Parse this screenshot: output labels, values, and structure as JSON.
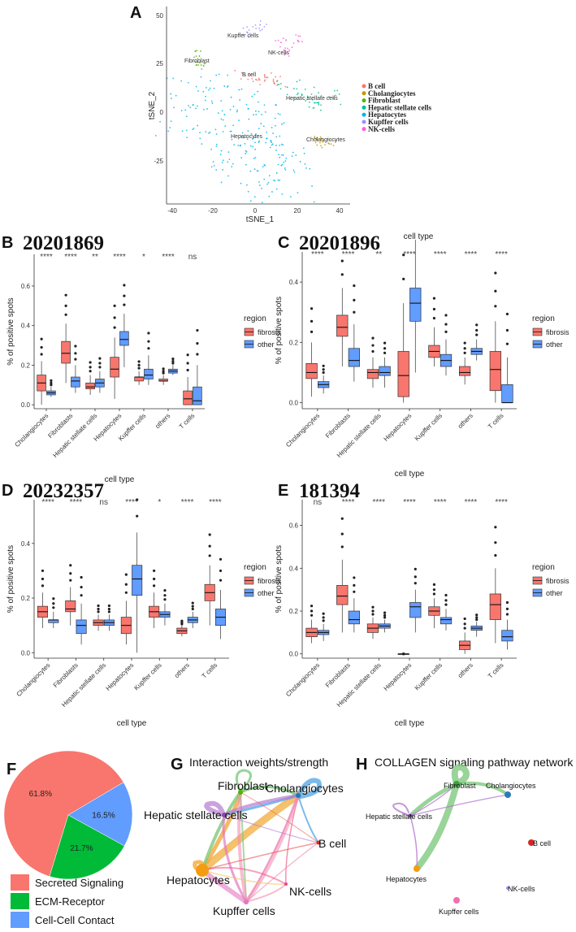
{
  "panel_a": {
    "letter": "A",
    "xlabel": "tSNE_1",
    "ylabel": "tSNE_2",
    "x_ticks": [
      "-40",
      "-20",
      "0",
      "20",
      "40"
    ],
    "y_ticks": [
      "50",
      "25",
      "0",
      "-25"
    ],
    "cluster_labels": [
      "Kupffer cells",
      "NK-cells",
      "Fibroblast",
      "B cell",
      "Hepatic stellate cells",
      "Hepatocytes",
      "Cholangiocytes"
    ],
    "legend": [
      "B cell",
      "Cholangiocytes",
      "Fibroblast",
      "Hepatic stellate cells",
      "Hepatocytes",
      "Kupffer cells",
      "NK-cells"
    ],
    "legend_colors": [
      "#f8766d",
      "#c49a00",
      "#53b400",
      "#00c094",
      "#00b6eb",
      "#a58aff",
      "#fb61d7"
    ]
  },
  "box_panels": [
    {
      "letter": "B",
      "sample_id": "20201869",
      "ylabel": "% of positive spots",
      "xlabel": "cell type",
      "y_ticks": [
        "0.0",
        "0.2",
        "0.4",
        "0.6"
      ],
      "significance": [
        "****",
        "****",
        "**",
        "****",
        "*",
        "****",
        "ns"
      ],
      "legend_title": "region",
      "legend_items": [
        "fibrosis",
        "other"
      ]
    },
    {
      "letter": "C",
      "sample_id": "20201896",
      "ylabel": "% of positive spots",
      "xlabel": "cell type",
      "top_label": "cell type",
      "y_ticks": [
        "0.0",
        "0.2",
        "0.4"
      ],
      "significance": [
        "****",
        "****",
        "**",
        "****",
        "****",
        "****",
        "****"
      ],
      "legend_title": "region",
      "legend_items": [
        "fibrosis",
        "other"
      ]
    },
    {
      "letter": "D",
      "sample_id": "20232357",
      "ylabel": "% of positive spots",
      "xlabel": "cell type",
      "y_ticks": [
        "0.0",
        "0.2",
        "0.4"
      ],
      "significance": [
        "****",
        "****",
        "ns",
        "****",
        "*",
        "****",
        "****"
      ],
      "legend_title": "region",
      "legend_items": [
        "fibrosis",
        "other"
      ]
    },
    {
      "letter": "E",
      "sample_id": "181394",
      "ylabel": "% of positive spots",
      "xlabel": "cell type",
      "y_ticks": [
        "0.0",
        "0.2",
        "0.4",
        "0.6"
      ],
      "significance": [
        "ns",
        "****",
        "****",
        "****",
        "****",
        "****",
        "****"
      ],
      "legend_title": "region",
      "legend_items": [
        "fibrosis",
        "other"
      ]
    }
  ],
  "panel_f": {
    "letter": "F",
    "legend": [
      "Secreted Signaling",
      "ECM-Receptor",
      "Cell-Cell Contact"
    ]
  },
  "panel_g": {
    "letter": "G",
    "title": "Interaction weights/strength",
    "nodes": [
      "Fibroblast",
      "Cholangiocytes",
      "Hepatic stellate cells",
      "B cell",
      "Hepatocytes",
      "NK-cells",
      "Kupffer cells"
    ]
  },
  "panel_h": {
    "letter": "H",
    "title": "COLLAGEN signaling pathway network",
    "nodes": [
      "Fibroblast",
      "Cholangiocytes",
      "Hepatic stellate cells",
      "B cell",
      "Hepatocytes",
      "NK-cells",
      "Kupffer cells"
    ]
  },
  "chart_data": [
    {
      "type": "scatter",
      "title": "",
      "xlabel": "tSNE_1",
      "ylabel": "tSNE_2",
      "xlim": [
        -45,
        47
      ],
      "ylim": [
        -52,
        56
      ],
      "series": [
        {
          "name": "B cell",
          "x": [
            -5,
            0,
            5,
            10
          ],
          "y": [
            20,
            18,
            19,
            17
          ]
        },
        {
          "name": "Cholangiocytes",
          "x": [
            28,
            32,
            35
          ],
          "y": [
            -12,
            -14,
            -15
          ]
        },
        {
          "name": "Fibroblast",
          "x": [
            -29,
            -27,
            -25
          ],
          "y": [
            27,
            30,
            25
          ]
        },
        {
          "name": "Hepatic stellate cells",
          "x": [
            15,
            22,
            28,
            35
          ],
          "y": [
            14,
            10,
            6,
            9
          ]
        },
        {
          "name": "Hepatocytes",
          "x": [
            -30,
            -15,
            0,
            10,
            -5
          ],
          "y": [
            5,
            0,
            -10,
            -30,
            -20
          ]
        },
        {
          "name": "Kupffer cells",
          "x": [
            -4,
            2
          ],
          "y": [
            42,
            46
          ]
        },
        {
          "name": "NK-cells",
          "x": [
            12,
            16,
            20
          ],
          "y": [
            37,
            33,
            38
          ]
        }
      ]
    },
    {
      "type": "box",
      "title": "20201869",
      "categories": [
        "Cholangiocytes",
        "Fibroblasts",
        "Hepatic stellate cells",
        "Hepatocytes",
        "Kupffer cells",
        "others",
        "T cells"
      ],
      "ylabel": "% of positive spots",
      "xlabel": "cell type",
      "ylim": [
        -0.02,
        0.76
      ],
      "series": [
        {
          "name": "fibrosis",
          "boxes": [
            [
              0.0,
              0.07,
              0.11,
              0.15,
              0.22
            ],
            [
              0.11,
              0.21,
              0.26,
              0.32,
              0.41
            ],
            [
              0.05,
              0.08,
              0.09,
              0.11,
              0.15
            ],
            [
              0.03,
              0.14,
              0.18,
              0.24,
              0.34
            ],
            [
              0.1,
              0.12,
              0.14,
              0.14,
              0.17
            ],
            [
              0.1,
              0.12,
              0.12,
              0.13,
              0.15
            ],
            [
              0.0,
              0.0,
              0.03,
              0.07,
              0.14
            ]
          ]
        },
        {
          "name": "other",
          "boxes": [
            [
              0.04,
              0.05,
              0.06,
              0.07,
              0.09
            ],
            [
              0.06,
              0.09,
              0.12,
              0.14,
              0.2
            ],
            [
              0.06,
              0.09,
              0.11,
              0.13,
              0.17
            ],
            [
              0.19,
              0.3,
              0.33,
              0.37,
              0.46
            ],
            [
              0.1,
              0.13,
              0.15,
              0.18,
              0.25
            ],
            [
              0.15,
              0.16,
              0.17,
              0.18,
              0.2
            ],
            [
              0.0,
              0.0,
              0.02,
              0.09,
              0.2
            ]
          ]
        }
      ]
    },
    {
      "type": "box",
      "title": "20201896",
      "categories": [
        "Cholangiocytes",
        "Fibroblasts",
        "Hepatic stellate cells",
        "Hepatocytes",
        "Kupffer cells",
        "others",
        "T cells"
      ],
      "ylabel": "% of positive spots",
      "xlabel": "cell type",
      "ylim": [
        -0.02,
        0.5
      ],
      "series": [
        {
          "name": "fibrosis",
          "boxes": [
            [
              0.02,
              0.08,
              0.1,
              0.13,
              0.2
            ],
            [
              0.12,
              0.22,
              0.25,
              0.29,
              0.38
            ],
            [
              0.05,
              0.08,
              0.1,
              0.11,
              0.15
            ],
            [
              0.0,
              0.02,
              0.09,
              0.17,
              0.33
            ],
            [
              0.12,
              0.15,
              0.17,
              0.19,
              0.25
            ],
            [
              0.06,
              0.09,
              0.1,
              0.12,
              0.15
            ],
            [
              0.0,
              0.04,
              0.11,
              0.17,
              0.27
            ]
          ]
        },
        {
          "name": "other",
          "boxes": [
            [
              0.03,
              0.05,
              0.06,
              0.07,
              0.09
            ],
            [
              0.07,
              0.12,
              0.14,
              0.18,
              0.26
            ],
            [
              0.05,
              0.09,
              0.1,
              0.12,
              0.15
            ],
            [
              0.1,
              0.27,
              0.33,
              0.38,
              0.54
            ],
            [
              0.09,
              0.12,
              0.14,
              0.16,
              0.21
            ],
            [
              0.14,
              0.16,
              0.17,
              0.18,
              0.21
            ],
            [
              0.0,
              0.0,
              0.0,
              0.06,
              0.15
            ]
          ]
        }
      ]
    },
    {
      "type": "box",
      "title": "20232357",
      "categories": [
        "Cholangiocytes",
        "Fibroblasts",
        "Hepatic stellate cells",
        "Hepatocytes",
        "Kupffer cells",
        "others",
        "T cells"
      ],
      "ylabel": "% of positive spots",
      "xlabel": "cell type",
      "ylim": [
        -0.02,
        0.56
      ],
      "series": [
        {
          "name": "fibrosis",
          "boxes": [
            [
              0.09,
              0.13,
              0.15,
              0.17,
              0.22
            ],
            [
              0.1,
              0.15,
              0.16,
              0.19,
              0.24
            ],
            [
              0.08,
              0.1,
              0.11,
              0.12,
              0.14
            ],
            [
              0.03,
              0.07,
              0.1,
              0.13,
              0.19
            ],
            [
              0.09,
              0.13,
              0.15,
              0.17,
              0.22
            ],
            [
              0.06,
              0.07,
              0.08,
              0.09,
              0.1
            ],
            [
              0.1,
              0.19,
              0.22,
              0.25,
              0.32
            ]
          ]
        },
        {
          "name": "other",
          "boxes": [
            [
              0.09,
              0.11,
              0.12,
              0.12,
              0.15
            ],
            [
              0.03,
              0.07,
              0.1,
              0.12,
              0.18
            ],
            [
              0.08,
              0.1,
              0.11,
              0.12,
              0.14
            ],
            [
              0.0,
              0.21,
              0.27,
              0.32,
              0.44
            ],
            [
              0.1,
              0.13,
              0.14,
              0.15,
              0.18
            ],
            [
              0.09,
              0.11,
              0.12,
              0.13,
              0.15
            ],
            [
              0.05,
              0.1,
              0.13,
              0.16,
              0.23
            ]
          ]
        }
      ]
    },
    {
      "type": "box",
      "title": "181394",
      "categories": [
        "Cholangiocytes",
        "Fibroblasts",
        "Hepatic stellate cells",
        "Hepatocytes",
        "Kupffer cells",
        "others",
        "T cells"
      ],
      "ylabel": "% of positive spots",
      "xlabel": "cell type",
      "ylim": [
        -0.02,
        0.72
      ],
      "series": [
        {
          "name": "fibrosis",
          "boxes": [
            [
              0.05,
              0.08,
              0.1,
              0.12,
              0.16
            ],
            [
              0.1,
              0.23,
              0.27,
              0.32,
              0.44
            ],
            [
              0.07,
              0.1,
              0.12,
              0.14,
              0.17
            ],
            [
              0.0,
              0.0,
              0.0,
              0.0,
              0.0
            ],
            [
              0.12,
              0.18,
              0.2,
              0.22,
              0.26
            ],
            [
              0.0,
              0.02,
              0.04,
              0.06,
              0.1
            ],
            [
              0.05,
              0.16,
              0.23,
              0.28,
              0.4
            ]
          ]
        },
        {
          "name": "other",
          "boxes": [
            [
              0.06,
              0.09,
              0.1,
              0.11,
              0.14
            ],
            [
              0.1,
              0.14,
              0.16,
              0.2,
              0.26
            ],
            [
              0.1,
              0.12,
              0.13,
              0.14,
              0.16
            ],
            [
              0.1,
              0.17,
              0.22,
              0.24,
              0.3
            ],
            [
              0.11,
              0.14,
              0.16,
              0.17,
              0.21
            ],
            [
              0.08,
              0.11,
              0.12,
              0.13,
              0.15
            ],
            [
              0.02,
              0.06,
              0.08,
              0.11,
              0.16
            ]
          ]
        }
      ]
    },
    {
      "type": "pie",
      "categories": [
        "Secreted Signaling",
        "ECM-Receptor",
        "Cell-Cell Contact"
      ],
      "values": [
        61.8,
        21.7,
        16.5
      ],
      "labels": [
        "61.8%",
        "21.7%",
        "16.5%"
      ],
      "colors": [
        "#f8766d",
        "#00ba38",
        "#619cff"
      ]
    }
  ]
}
